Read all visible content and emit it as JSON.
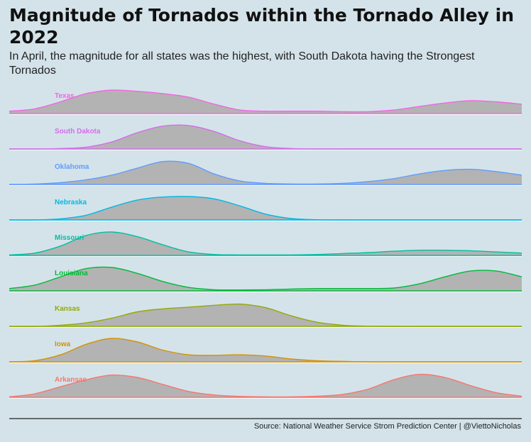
{
  "header": {
    "title": "Magnitude of Tornados within the Tornado Alley in 2022",
    "subtitle": "In April, the magnitude for all states was the highest, with South Dakota having the Strongest Tornados"
  },
  "footer": {
    "source": "Source: National Weather Service Strom Prediction Center | @ViettoNicholas"
  },
  "chart_data": {
    "type": "area",
    "chart_kind": "ridgeline density",
    "x_domain": [
      0,
      100
    ],
    "grid": false,
    "legend": "none (labels on ridges)",
    "fill_color": "#b3b3b3",
    "series": [
      {
        "name": "Texas",
        "color": "#f564e3",
        "x": [
          0,
          5,
          10,
          15,
          20,
          25,
          30,
          35,
          40,
          45,
          50,
          55,
          60,
          65,
          70,
          75,
          80,
          85,
          90,
          95,
          100
        ],
        "values": [
          0.1,
          0.2,
          0.5,
          0.85,
          1.0,
          0.95,
          0.85,
          0.7,
          0.4,
          0.15,
          0.1,
          0.1,
          0.1,
          0.08,
          0.08,
          0.15,
          0.3,
          0.45,
          0.55,
          0.5,
          0.4
        ]
      },
      {
        "name": "South Dakota",
        "color": "#d66dea",
        "x": [
          0,
          5,
          10,
          15,
          20,
          25,
          30,
          35,
          40,
          45,
          50,
          55,
          60,
          65,
          70,
          75,
          80,
          85,
          90,
          95,
          100
        ],
        "values": [
          0,
          0,
          0.02,
          0.08,
          0.3,
          0.7,
          0.98,
          1.0,
          0.75,
          0.35,
          0.1,
          0.02,
          0,
          0,
          0,
          0,
          0,
          0,
          0,
          0,
          0
        ]
      },
      {
        "name": "Oklahoma",
        "color": "#619cff",
        "x": [
          0,
          5,
          10,
          15,
          20,
          25,
          30,
          35,
          40,
          45,
          50,
          55,
          60,
          65,
          70,
          75,
          80,
          85,
          90,
          95,
          100
        ],
        "values": [
          0,
          0.02,
          0.08,
          0.2,
          0.4,
          0.7,
          0.98,
          0.9,
          0.45,
          0.15,
          0.05,
          0.02,
          0.02,
          0.05,
          0.12,
          0.25,
          0.45,
          0.6,
          0.65,
          0.55,
          0.4
        ]
      },
      {
        "name": "Nebraska",
        "color": "#00b9e3",
        "x": [
          0,
          5,
          10,
          15,
          20,
          25,
          30,
          35,
          40,
          45,
          50,
          55,
          60,
          65,
          70,
          75,
          80,
          85,
          90,
          95,
          100
        ],
        "values": [
          0,
          0,
          0.05,
          0.2,
          0.55,
          0.85,
          0.98,
          1.0,
          0.9,
          0.6,
          0.25,
          0.06,
          0.01,
          0,
          0,
          0,
          0,
          0,
          0,
          0,
          0
        ]
      },
      {
        "name": "Missouri",
        "color": "#00bfa0",
        "x": [
          0,
          5,
          10,
          15,
          20,
          25,
          30,
          35,
          40,
          45,
          50,
          55,
          60,
          65,
          70,
          75,
          80,
          85,
          90,
          95,
          100
        ],
        "values": [
          0.02,
          0.1,
          0.4,
          0.85,
          1.0,
          0.8,
          0.45,
          0.15,
          0.04,
          0.02,
          0.02,
          0.02,
          0.04,
          0.08,
          0.12,
          0.18,
          0.22,
          0.22,
          0.2,
          0.15,
          0.1
        ]
      },
      {
        "name": "Louisiana",
        "color": "#00ba38",
        "x": [
          0,
          5,
          10,
          15,
          20,
          25,
          30,
          35,
          40,
          45,
          50,
          55,
          60,
          65,
          70,
          75,
          80,
          85,
          90,
          95,
          100
        ],
        "values": [
          0.1,
          0.25,
          0.6,
          0.95,
          1.0,
          0.75,
          0.4,
          0.15,
          0.05,
          0.04,
          0.05,
          0.08,
          0.1,
          0.1,
          0.1,
          0.12,
          0.3,
          0.6,
          0.85,
          0.85,
          0.6
        ]
      },
      {
        "name": "Kansas",
        "color": "#93aa00",
        "x": [
          0,
          5,
          10,
          15,
          20,
          25,
          30,
          35,
          40,
          45,
          50,
          55,
          60,
          65,
          70,
          75,
          80,
          85,
          90,
          95,
          100
        ],
        "values": [
          0,
          0,
          0.05,
          0.15,
          0.35,
          0.62,
          0.75,
          0.82,
          0.9,
          0.95,
          0.8,
          0.45,
          0.18,
          0.05,
          0.01,
          0,
          0,
          0,
          0,
          0,
          0
        ]
      },
      {
        "name": "Iowa",
        "color": "#d39200",
        "x": [
          0,
          5,
          10,
          15,
          20,
          25,
          30,
          35,
          40,
          45,
          50,
          55,
          60,
          65,
          70,
          75,
          80,
          85,
          90,
          95,
          100
        ],
        "values": [
          0,
          0.05,
          0.3,
          0.75,
          1.0,
          0.85,
          0.5,
          0.3,
          0.28,
          0.3,
          0.25,
          0.12,
          0.05,
          0.02,
          0,
          0,
          0,
          0,
          0,
          0,
          0
        ]
      },
      {
        "name": "Arkansas",
        "color": "#f8766d",
        "x": [
          0,
          5,
          10,
          15,
          20,
          25,
          30,
          35,
          40,
          45,
          50,
          55,
          60,
          65,
          70,
          75,
          80,
          85,
          90,
          95,
          100
        ],
        "values": [
          0.02,
          0.15,
          0.45,
          0.75,
          0.95,
          0.85,
          0.55,
          0.25,
          0.1,
          0.04,
          0.02,
          0.02,
          0.05,
          0.12,
          0.35,
          0.75,
          0.98,
          0.85,
          0.5,
          0.2,
          0.05
        ]
      }
    ]
  }
}
